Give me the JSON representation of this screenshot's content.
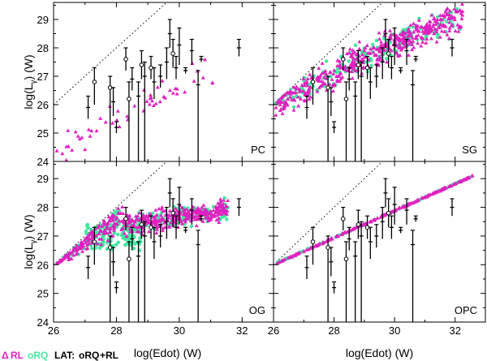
{
  "colors": {
    "rl": "#e020c0",
    "rq": "#40e8a0",
    "lat": "#000000",
    "frame": "#000000",
    "limit": "#000000"
  },
  "legend": {
    "rl_symbol": "Δ",
    "rl": "RL",
    "rq": "oRQ",
    "lat": "LAT:",
    "lat_rq": "oRQ",
    "lat_rl": "+RL"
  },
  "chart_data": {
    "type": "scatter",
    "xlabel": "log(Edot) (W)",
    "ylabel_main": "log(L",
    "ylabel_sub": "γ",
    "ylabel_tail": ") (W)",
    "xlim": [
      26,
      33
    ],
    "ylim": [
      24,
      29.6
    ],
    "xticks": [
      "26",
      "28",
      "30",
      "32"
    ],
    "yticks": [
      "24",
      "25",
      "26",
      "27",
      "28",
      "29"
    ],
    "limit_line": {
      "x": [
        26,
        29.6
      ],
      "y": [
        26,
        29.6
      ]
    },
    "lat_pulsars": [
      {
        "x": 27.3,
        "y": 26.8,
        "lo": 26.0,
        "hi": 27.3,
        "kind": "rq"
      },
      {
        "x": 27.1,
        "y": 25.9,
        "lo": 25.5,
        "hi": 26.3,
        "kind": "rl"
      },
      {
        "x": 27.8,
        "y": 26.6,
        "lo": 24.0,
        "hi": 27.0,
        "kind": "rq"
      },
      {
        "x": 27.9,
        "y": 26.1,
        "lo": 25.6,
        "hi": 26.6,
        "kind": "rl"
      },
      {
        "x": 28.0,
        "y": 25.2,
        "lo": 25.0,
        "hi": 25.4,
        "kind": "rl"
      },
      {
        "x": 28.3,
        "y": 27.6,
        "lo": 27.2,
        "hi": 28.0,
        "kind": "rq"
      },
      {
        "x": 28.4,
        "y": 26.2,
        "lo": 24.0,
        "hi": 26.8,
        "kind": "rq"
      },
      {
        "x": 28.5,
        "y": 26.9,
        "lo": 26.5,
        "hi": 27.3,
        "kind": "rl"
      },
      {
        "x": 28.7,
        "y": 26.3,
        "lo": 24.0,
        "hi": 26.8,
        "kind": "rl"
      },
      {
        "x": 28.8,
        "y": 27.4,
        "lo": 26.9,
        "hi": 27.9,
        "kind": "rq"
      },
      {
        "x": 28.9,
        "y": 27.0,
        "lo": 24.0,
        "hi": 27.5,
        "kind": "rl"
      },
      {
        "x": 29.1,
        "y": 27.3,
        "lo": 26.9,
        "hi": 27.7,
        "kind": "rq"
      },
      {
        "x": 29.2,
        "y": 26.8,
        "lo": 26.2,
        "hi": 27.3,
        "kind": "rl"
      },
      {
        "x": 29.4,
        "y": 27.0,
        "lo": 26.6,
        "hi": 27.4,
        "kind": "rl"
      },
      {
        "x": 29.6,
        "y": 27.5,
        "lo": 26.9,
        "hi": 28.0,
        "kind": "rl"
      },
      {
        "x": 29.7,
        "y": 28.5,
        "lo": 28.0,
        "hi": 29.0,
        "kind": "rl"
      },
      {
        "x": 29.8,
        "y": 27.8,
        "lo": 27.3,
        "hi": 28.3,
        "kind": "rq"
      },
      {
        "x": 29.9,
        "y": 27.3,
        "lo": 26.9,
        "hi": 27.7,
        "kind": "rl"
      },
      {
        "x": 30.0,
        "y": 28.1,
        "lo": 27.4,
        "hi": 28.7,
        "kind": "rl"
      },
      {
        "x": 30.2,
        "y": 27.2,
        "lo": 27.1,
        "hi": 27.3,
        "kind": "rl"
      },
      {
        "x": 30.4,
        "y": 27.9,
        "lo": 27.4,
        "hi": 28.3,
        "kind": "rl"
      },
      {
        "x": 30.6,
        "y": 26.7,
        "lo": 24.0,
        "hi": 27.2,
        "kind": "rl"
      },
      {
        "x": 30.7,
        "y": 27.6,
        "lo": 27.5,
        "hi": 27.7,
        "kind": "rl"
      },
      {
        "x": 31.9,
        "y": 28.0,
        "lo": 27.7,
        "hi": 28.3,
        "kind": "rl"
      }
    ],
    "panels": [
      {
        "label": "PC",
        "model": "pc",
        "show_ylabel": true,
        "show_xticks": false,
        "show_xlabel": false,
        "show_yticks": true
      },
      {
        "label": "SG",
        "model": "sg",
        "show_ylabel": false,
        "show_xticks": false,
        "show_xlabel": false,
        "show_yticks": false
      },
      {
        "label": "OG",
        "model": "og",
        "show_ylabel": true,
        "show_xticks": true,
        "show_xlabel": true,
        "show_yticks": true
      },
      {
        "label": "OPC",
        "model": "opc",
        "show_ylabel": false,
        "show_xticks": true,
        "show_xlabel": true,
        "show_yticks": false
      }
    ]
  }
}
